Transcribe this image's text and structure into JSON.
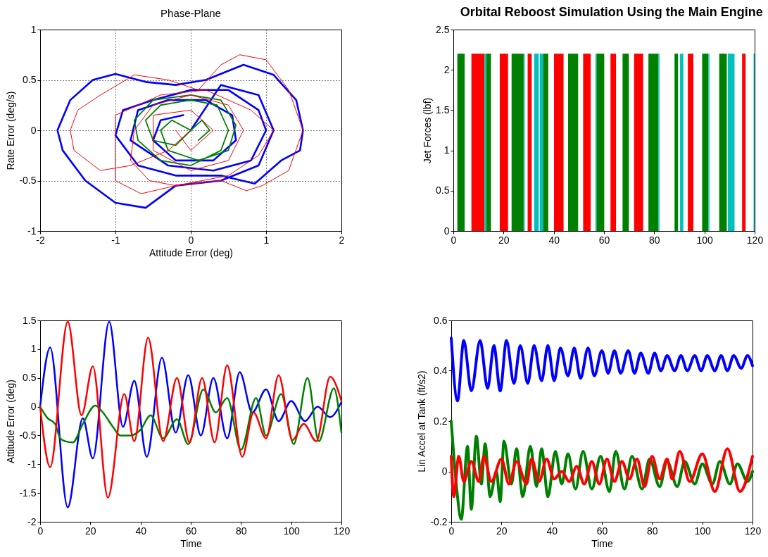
{
  "chart_data": [
    {
      "type": "line",
      "title": "Phase-Plane",
      "xlabel": "Attitude Error (deg)",
      "ylabel": "Rate Error (deg/s)",
      "xlim": [
        -2,
        2
      ],
      "xticks": [
        -2,
        -1,
        0,
        1,
        2
      ],
      "ylim": [
        -1,
        1
      ],
      "yticks": [
        -1,
        -0.5,
        0,
        0.5,
        1
      ],
      "grid": true,
      "line_style": "solid",
      "series": [
        {
          "color": "#0000ff",
          "x": [
            0,
            0.4,
            0.9,
            1.1,
            0.9,
            0.4,
            -0.2,
            -0.6,
            -1.0,
            -1.4,
            -1.7,
            -1.77,
            -1.6,
            -1.3,
            -1.0,
            -0.6,
            -0.2,
            0.2,
            0.7,
            1.1,
            1.4,
            1.49,
            1.45,
            1.2,
            0.85,
            0.4,
            -0.2,
            -0.7,
            -1.0,
            -0.9,
            -0.5,
            0,
            0.5,
            0.9,
            1.0,
            0.8,
            0.3,
            -0.3,
            -0.8,
            -0.7,
            -0.3,
            0.2,
            0.55,
            0.6,
            0.3,
            -0.2,
            -0.5,
            -0.4,
            -0.1
          ],
          "values": [
            0,
            0.45,
            0.35,
            0,
            -0.35,
            -0.5,
            -0.55,
            -0.77,
            -0.72,
            -0.5,
            -0.2,
            0,
            0.3,
            0.5,
            0.56,
            0.48,
            0.45,
            0.5,
            0.65,
            0.55,
            0.3,
            0,
            -0.2,
            -0.3,
            -0.53,
            -0.45,
            -0.45,
            -0.35,
            -0.05,
            0.2,
            0.3,
            0.4,
            0.4,
            0.2,
            0,
            -0.3,
            -0.4,
            -0.35,
            -0.1,
            0.2,
            0.3,
            0.3,
            0.15,
            -0.1,
            -0.3,
            -0.3,
            -0.1,
            0.1,
            0.15
          ]
        },
        {
          "color": "#008000",
          "x": [
            0,
            -0.2,
            -0.5,
            -0.6,
            -0.4,
            0,
            0.35,
            0.5,
            0.4,
            0,
            -0.4,
            -0.7,
            -0.75,
            -0.5,
            0,
            0.4,
            0.6,
            0.5,
            0.1,
            -0.3,
            -0.4,
            -0.25,
            0,
            0.15,
            0.25,
            0.1
          ],
          "values": [
            0,
            -0.15,
            -0.1,
            0.1,
            0.25,
            0.3,
            0.25,
            0,
            -0.2,
            -0.35,
            -0.3,
            -0.1,
            0.1,
            0.3,
            0.35,
            0.3,
            0.05,
            -0.2,
            -0.3,
            -0.2,
            0,
            0.1,
            0,
            0.1,
            0,
            -0.1
          ]
        },
        {
          "color": "#ff0000",
          "x": [
            0,
            -0.3,
            -0.8,
            -1.2,
            -1.55,
            -1.6,
            -1.5,
            -1.2,
            -0.75,
            -0.3,
            0.1,
            0.4,
            0.65,
            1.0,
            1.3,
            1.49,
            1.3,
            0.95,
            0.74,
            0.4,
            -0.2,
            -0.66,
            -1.0,
            -1.0,
            -0.4,
            0.2,
            0.8,
            1.1,
            0.9,
            0.5,
            -0.2,
            -0.55,
            -0.8,
            -0.75,
            -0.5,
            0,
            0.5,
            0.7,
            0.5,
            0,
            -0.5,
            -0.5,
            0,
            0.3,
            0,
            -0.2
          ],
          "values": [
            0,
            -0.2,
            -0.35,
            -0.4,
            -0.2,
            0,
            0.2,
            0.35,
            0.55,
            0.5,
            0.4,
            0.65,
            0.75,
            0.7,
            0.4,
            0,
            -0.4,
            -0.55,
            -0.6,
            -0.5,
            -0.55,
            -0.63,
            -0.5,
            0.15,
            0.35,
            0.4,
            0.2,
            0,
            -0.25,
            -0.45,
            -0.55,
            -0.5,
            -0.3,
            0,
            0.25,
            0.35,
            0.25,
            0,
            -0.3,
            -0.4,
            -0.2,
            0.15,
            0.2,
            0,
            -0.2,
            0
          ]
        }
      ]
    },
    {
      "type": "area",
      "title": "Orbital Reboost Simulation Using the Main Engine",
      "ylabel": "Jet Forces (lbf)",
      "xlim": [
        0,
        120
      ],
      "xticks": [
        0,
        20,
        40,
        60,
        80,
        100,
        120
      ],
      "ylim": [
        0,
        2.5
      ],
      "yticks": [
        0,
        0.5,
        1,
        1.5,
        2,
        2.5
      ],
      "series": [
        {
          "color": "#008000",
          "x": [
            1.6,
            1.6,
            4.5,
            4.5,
            13.1,
            13.1,
            15.0,
            15.0,
            23.2,
            23.2,
            28.0,
            28.0,
            35.7,
            35.7,
            37.8,
            37.8,
            45.7,
            45.7,
            49.7,
            49.7,
            57.0,
            57.0,
            60.1,
            60.1,
            67.4,
            67.4,
            69.9,
            69.9,
            77.7,
            77.7,
            81.7,
            81.7,
            88.1,
            88.1,
            89.5,
            89.5,
            99.1,
            99.1,
            101.6,
            101.6,
            105.9,
            105.9,
            108.9,
            108.9
          ],
          "values": [
            0,
            2.2,
            2.2,
            0,
            0,
            2.2,
            2.2,
            0,
            0,
            2.2,
            2.2,
            0,
            0,
            2.2,
            2.2,
            0,
            0,
            2.2,
            2.2,
            0,
            0,
            2.2,
            2.2,
            0,
            0,
            2.2,
            2.2,
            0,
            0,
            2.2,
            2.2,
            0,
            0,
            2.2,
            2.2,
            0,
            0,
            2.2,
            2.2,
            0,
            0,
            2.2,
            2.2,
            0
          ]
        },
        {
          "color": "#ff0000",
          "x": [
            7.2,
            7.2,
            12.4,
            12.4,
            18.5,
            18.5,
            21.8,
            21.8,
            29.6,
            29.6,
            31.2,
            31.2,
            40.1,
            40.1,
            43.9,
            43.9,
            51.7,
            51.7,
            54.7,
            54.7,
            62.6,
            62.6,
            64.8,
            64.8,
            72.0,
            72.0,
            75.6,
            75.6,
            93.4,
            93.4,
            95.6,
            95.6,
            115.0,
            115.0,
            116.4,
            116.4
          ],
          "values": [
            0,
            2.2,
            2.2,
            0,
            0,
            2.2,
            2.2,
            0,
            0,
            2.2,
            2.2,
            0,
            0,
            2.2,
            2.2,
            0,
            0,
            2.2,
            2.2,
            0,
            0,
            2.2,
            2.2,
            0,
            0,
            2.2,
            2.2,
            0,
            0,
            2.2,
            2.2,
            0,
            0,
            2.2,
            2.2,
            0
          ]
        },
        {
          "color": "#00bfbf",
          "x": [
            12.4,
            12.4,
            13.1,
            13.1,
            28.0,
            28.0,
            28.4,
            28.4,
            32.2,
            32.2,
            34.0,
            34.0,
            34.4,
            34.4,
            35.7,
            35.7,
            56.6,
            56.6,
            57.0,
            57.0,
            81.7,
            81.7,
            82.1,
            82.1,
            90.3,
            90.3,
            91.6,
            91.6,
            101.6,
            101.6,
            102.0,
            102.0,
            109.3,
            109.3,
            112.0,
            112.0,
            119.6,
            119.6,
            120,
            120
          ],
          "values": [
            0,
            2.2,
            2.2,
            0,
            0,
            2.2,
            2.2,
            0,
            0,
            2.2,
            2.2,
            0,
            0,
            2.2,
            2.2,
            0,
            0,
            2.2,
            2.2,
            0,
            0,
            2.2,
            2.2,
            0,
            0,
            2.2,
            2.2,
            0,
            0,
            2.2,
            2.2,
            0,
            0,
            2.2,
            2.2,
            0,
            0,
            2.2,
            2.2,
            0
          ]
        }
      ]
    },
    {
      "type": "line",
      "xlabel": "Time",
      "ylabel": "Attitude Error (deg)",
      "xlim": [
        0,
        120
      ],
      "xticks": [
        0,
        20,
        40,
        60,
        80,
        100,
        120
      ],
      "ylim": [
        -2,
        1.5
      ],
      "yticks": [
        -2,
        -1.5,
        -1,
        -0.5,
        0,
        0.5,
        1,
        1.5
      ],
      "line_style": "solid",
      "series": [
        {
          "color": "#0000ff",
          "x": [
            0,
            4,
            11,
            17,
            21,
            27.5,
            33,
            37.5,
            42.5,
            48.5,
            54,
            59,
            64,
            69,
            74.5,
            79.5,
            84.5,
            90,
            95,
            100,
            105.5,
            110.5,
            115.5,
            120
          ],
          "values": [
            0,
            1.03,
            -1.75,
            -0.2,
            -0.9,
            1.48,
            -0.35,
            0.45,
            -0.87,
            0.85,
            -0.45,
            0.55,
            -0.5,
            0.5,
            -0.55,
            0.6,
            -0.1,
            0.3,
            -0.25,
            0.1,
            -0.25,
            0,
            -0.18,
            0.08
          ]
        },
        {
          "color": "#008000",
          "x": [
            0,
            3,
            6,
            8,
            10,
            13,
            17,
            22,
            25,
            29,
            32,
            36,
            40,
            44,
            49,
            54.5,
            59,
            65,
            70,
            74.5,
            80,
            86,
            90,
            96,
            101,
            106.5,
            111,
            117,
            120
          ],
          "values": [
            0,
            -0.2,
            -0.3,
            -0.55,
            -0.6,
            -0.62,
            -0.3,
            0.02,
            -0.1,
            -0.35,
            -0.5,
            -0.5,
            -0.4,
            -0.15,
            -0.55,
            -0.22,
            -0.65,
            0.3,
            -0.1,
            0.15,
            -0.75,
            0.15,
            -0.5,
            0.22,
            -0.65,
            0.5,
            -0.6,
            0.32,
            -0.45
          ]
        },
        {
          "color": "#ff0000",
          "x": [
            0,
            4,
            11,
            16.5,
            21,
            27,
            33.5,
            37.5,
            43,
            49,
            54.5,
            59.5,
            64.5,
            69.5,
            74.5,
            80.5,
            85,
            90,
            95,
            100.5,
            105,
            110,
            115.5,
            120
          ],
          "values": [
            0,
            -1.05,
            1.48,
            -0.15,
            0.7,
            -1.58,
            0.22,
            -0.6,
            1.2,
            -0.6,
            0.5,
            -0.62,
            0.5,
            -0.62,
            0.72,
            -0.87,
            -0.1,
            -0.55,
            0.55,
            -0.58,
            -0.3,
            -0.6,
            0.52,
            0.1
          ]
        }
      ]
    },
    {
      "type": "line",
      "xlabel": "Time",
      "ylabel": "Lin Accel at Tank (ft/s2)",
      "xlim": [
        0,
        120
      ],
      "xticks": [
        0,
        20,
        40,
        60,
        80,
        100,
        120
      ],
      "ylim": [
        -0.2,
        0.6
      ],
      "yticks": [
        -0.2,
        0,
        0.2,
        0.4,
        0.6
      ],
      "line_style": "solid",
      "series": [
        {
          "color": "#0000ff",
          "x": [
            0,
            2.5,
            5,
            8,
            11.5,
            14.5,
            17,
            19.5,
            22,
            25,
            27.5,
            30.5,
            33,
            36,
            38.5,
            41,
            43.5,
            46.5,
            49,
            51.5,
            54.5,
            57,
            60,
            62.5,
            65,
            67.5,
            70.5,
            73,
            75.5,
            78.5,
            81,
            83.5,
            86,
            89,
            91.5,
            94,
            97,
            99.5,
            102,
            105,
            107.5,
            110,
            112.5,
            115.5,
            118,
            120
          ],
          "values": [
            0.53,
            0.28,
            0.52,
            0.32,
            0.52,
            0.33,
            0.5,
            0.32,
            0.52,
            0.35,
            0.5,
            0.35,
            0.5,
            0.36,
            0.5,
            0.36,
            0.49,
            0.38,
            0.49,
            0.37,
            0.49,
            0.38,
            0.48,
            0.39,
            0.48,
            0.39,
            0.48,
            0.39,
            0.47,
            0.39,
            0.47,
            0.4,
            0.46,
            0.4,
            0.46,
            0.4,
            0.46,
            0.4,
            0.46,
            0.4,
            0.46,
            0.4,
            0.46,
            0.41,
            0.46,
            0.42
          ]
        },
        {
          "color": "#008000",
          "x": [
            0,
            2,
            4,
            6.5,
            8,
            10,
            12,
            13.5,
            15.5,
            18,
            19.5,
            21,
            24,
            26,
            28.5,
            31.5,
            34,
            36,
            38.5,
            41.5,
            44,
            46.5,
            49.5,
            52.5,
            56,
            59.5,
            63,
            65.5,
            69,
            72,
            76,
            79,
            83,
            86,
            90,
            93,
            97,
            100,
            104,
            107,
            111,
            114,
            118,
            120
          ],
          "values": [
            0.2,
            -0.05,
            -0.19,
            0.1,
            -0.15,
            0.14,
            -0.05,
            0.11,
            -0.1,
            0,
            -0.12,
            0.12,
            -0.05,
            0.09,
            -0.1,
            0.1,
            -0.06,
            0.09,
            -0.1,
            0.08,
            -0.05,
            0.07,
            -0.07,
            0.08,
            -0.07,
            0.06,
            -0.08,
            0.08,
            -0.07,
            0.06,
            -0.07,
            0.05,
            -0.06,
            0.04,
            -0.06,
            0.04,
            -0.05,
            0.03,
            -0.05,
            0.04,
            -0.05,
            0.03,
            -0.04,
            0
          ]
        },
        {
          "color": "#ff0000",
          "x": [
            0,
            1,
            3,
            5,
            8,
            11,
            13,
            16,
            20,
            23,
            26,
            30,
            32,
            35,
            38,
            41,
            44,
            47,
            50,
            53,
            56,
            59,
            62,
            65,
            68,
            71,
            74,
            77,
            80,
            83,
            86,
            88,
            91,
            95,
            100,
            105,
            110,
            115,
            120
          ],
          "values": [
            0.06,
            -0.1,
            0.06,
            -0.04,
            0.04,
            -0.04,
            0.06,
            -0.04,
            0.05,
            -0.05,
            0.04,
            -0.05,
            0.05,
            -0.04,
            0.05,
            -0.03,
            0,
            -0.04,
            0.02,
            -0.05,
            0.04,
            -0.05,
            0.05,
            -0.04,
            0.04,
            -0.03,
            0.05,
            -0.06,
            0.06,
            -0.03,
            0.05,
            -0.03,
            0.08,
            -0.04,
            0.07,
            -0.08,
            0.09,
            -0.08,
            0.06
          ]
        }
      ]
    }
  ]
}
